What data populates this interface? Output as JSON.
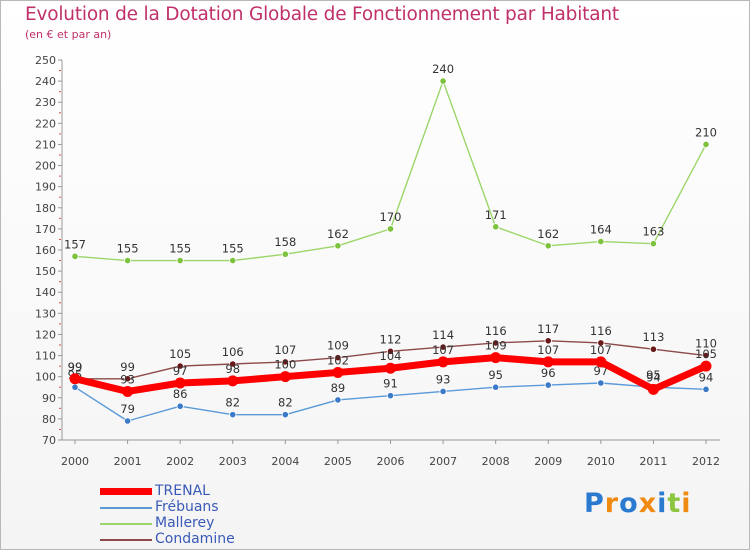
{
  "title": "Evolution de la Dotation Globale de Fonctionnement par Habitant",
  "subtitle": "(en € et par an)",
  "logo": "Proxiti",
  "chart_data": {
    "type": "line",
    "title": "Evolution de la Dotation Globale de Fonctionnement par Habitant",
    "subtitle": "(en € et par an)",
    "xlabel": "",
    "ylabel": "",
    "ylim": [
      70,
      250
    ],
    "ytick_step": 10,
    "x": [
      "2000",
      "2001",
      "2002",
      "2003",
      "2004",
      "2005",
      "2006",
      "2007",
      "2008",
      "2009",
      "2010",
      "2011",
      "2012"
    ],
    "series": [
      {
        "name": "Mallerey",
        "color": "#9cd66a",
        "marker": "#7cc23c",
        "values": [
          157,
          155,
          155,
          155,
          158,
          162,
          170,
          240,
          171,
          162,
          164,
          163,
          210
        ]
      },
      {
        "name": "Condamine",
        "color": "#8c4a4a",
        "marker": "#6a1818",
        "values": [
          99,
          99,
          105,
          106,
          107,
          109,
          112,
          114,
          116,
          117,
          116,
          113,
          110
        ]
      },
      {
        "name": "Frébuans",
        "color": "#5a9ad8",
        "marker": "#3a7ac8",
        "values": [
          95,
          79,
          86,
          82,
          82,
          89,
          91,
          93,
          95,
          96,
          97,
          95,
          94
        ]
      },
      {
        "name": "TRENAL",
        "color": "#ff0000",
        "marker": "#ff0000",
        "values": [
          99,
          93,
          97,
          98,
          100,
          102,
          104,
          107,
          109,
          107,
          107,
          94,
          105
        ]
      }
    ],
    "legend": [
      "TRENAL",
      "Frébuans",
      "Mallerey",
      "Condamine"
    ]
  }
}
